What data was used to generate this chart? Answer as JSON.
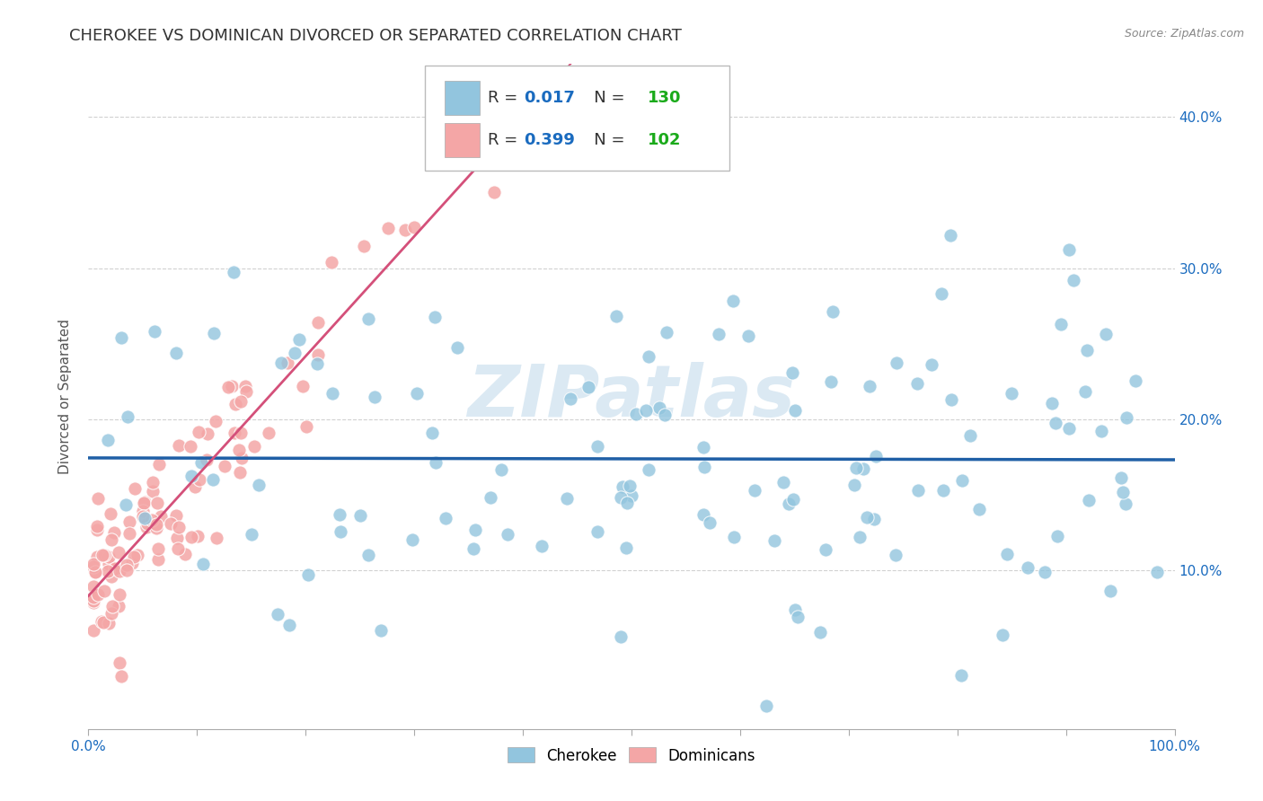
{
  "title": "CHEROKEE VS DOMINICAN DIVORCED OR SEPARATED CORRELATION CHART",
  "source": "Source: ZipAtlas.com",
  "ylabel": "Divorced or Separated",
  "watermark": "ZIPatlas",
  "xlim": [
    0.0,
    1.0
  ],
  "ylim": [
    -0.005,
    0.435
  ],
  "yticks": [
    0.1,
    0.2,
    0.3,
    0.4
  ],
  "ytick_labels_right": [
    "10.0%",
    "20.0%",
    "30.0%",
    "40.0%"
  ],
  "cherokee_color": "#92c5de",
  "dominican_color": "#f4a6a6",
  "cherokee_line_color": "#1f5fa6",
  "dominican_line_color": "#d4507a",
  "dominican_dash_color": "#e8a0b0",
  "cherokee_R": 0.017,
  "cherokee_N": 130,
  "dominican_R": 0.399,
  "dominican_N": 102,
  "legend_R_color": "#1a6bbf",
  "legend_N_color": "#1aaa1a",
  "background_color": "#ffffff",
  "grid_color": "#cccccc",
  "title_fontsize": 13,
  "axis_fontsize": 11,
  "tick_fontsize": 11,
  "watermark_color": "#b8d4e8",
  "watermark_alpha": 0.5
}
